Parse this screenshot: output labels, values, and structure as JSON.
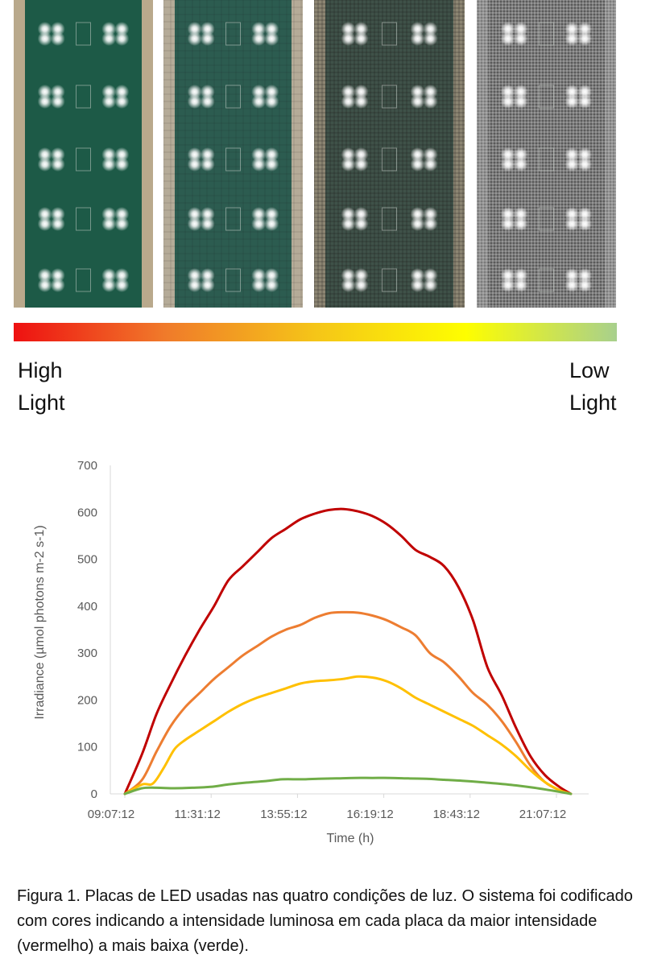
{
  "scale": {
    "gradient_colors": [
      "#ee1111",
      "#f07a2a",
      "#f5c518",
      "#fefe00",
      "#a8d08d"
    ],
    "high_label": "High\nLight",
    "low_label": "Low\nLight"
  },
  "panels": [
    {
      "name": "high-light-panel",
      "shade_level": 0
    },
    {
      "name": "medium-high-light-panel",
      "shade_level": 1
    },
    {
      "name": "medium-low-light-panel",
      "shade_level": 2
    },
    {
      "name": "low-light-panel",
      "shade_level": 3
    }
  ],
  "chart_data": {
    "type": "line",
    "title": "",
    "xlabel": "Time (h)",
    "ylabel": "Irradiance  (µmol photons m-2 s-1)",
    "ylim": [
      0,
      700
    ],
    "yticks": [
      0,
      100,
      200,
      300,
      400,
      500,
      600,
      700
    ],
    "xlim": [
      9.119,
      21.519
    ],
    "xticks": [
      "09:07:12",
      "11:31:12",
      "13:55:12",
      "16:19:12",
      "18:43:12",
      "21:07:12"
    ],
    "xtick_hours": [
      9.12,
      11.52,
      13.92,
      16.32,
      18.72,
      21.12
    ],
    "grid": false,
    "legend": "none",
    "series": [
      {
        "color": "#c00000",
        "x": [
          9.12,
          9.6,
          10.0,
          10.4,
          10.8,
          11.2,
          11.6,
          12.0,
          12.4,
          12.8,
          13.2,
          13.6,
          14.0,
          14.4,
          14.8,
          15.2,
          15.6,
          16.0,
          16.4,
          16.8,
          17.2,
          17.6,
          18.0,
          18.4,
          18.8,
          19.2,
          19.6,
          20.0,
          20.4,
          20.8,
          21.2,
          21.52
        ],
        "y": [
          0,
          85,
          170,
          235,
          295,
          350,
          400,
          455,
          485,
          515,
          545,
          565,
          585,
          597,
          605,
          607,
          602,
          592,
          575,
          550,
          520,
          505,
          485,
          440,
          370,
          270,
          210,
          140,
          80,
          40,
          15,
          0
        ]
      },
      {
        "color": "#ed7d31",
        "x": [
          9.12,
          9.6,
          10.0,
          10.4,
          10.8,
          11.2,
          11.6,
          12.0,
          12.4,
          12.8,
          13.2,
          13.6,
          14.0,
          14.4,
          14.8,
          15.2,
          15.6,
          16.0,
          16.4,
          16.8,
          17.2,
          17.6,
          18.0,
          18.4,
          18.8,
          19.2,
          19.6,
          20.0,
          20.4,
          20.8,
          21.2,
          21.52
        ],
        "y": [
          0,
          30,
          90,
          145,
          185,
          215,
          245,
          270,
          295,
          315,
          335,
          350,
          360,
          375,
          385,
          387,
          386,
          380,
          370,
          355,
          338,
          300,
          280,
          250,
          215,
          190,
          155,
          110,
          60,
          25,
          8,
          0
        ]
      },
      {
        "color": "#ffc000",
        "x": [
          9.12,
          9.6,
          9.9,
          10.2,
          10.5,
          10.8,
          11.2,
          11.6,
          12.0,
          12.4,
          12.8,
          13.2,
          13.6,
          14.0,
          14.4,
          14.8,
          15.2,
          15.6,
          16.0,
          16.4,
          16.8,
          17.2,
          17.6,
          18.0,
          18.4,
          18.8,
          19.2,
          19.6,
          20.0,
          20.4,
          20.8,
          21.2,
          21.52
        ],
        "y": [
          0,
          20,
          22,
          55,
          95,
          115,
          135,
          155,
          175,
          192,
          205,
          215,
          225,
          235,
          240,
          242,
          245,
          250,
          248,
          240,
          225,
          205,
          190,
          175,
          160,
          145,
          125,
          105,
          80,
          50,
          25,
          8,
          0
        ]
      },
      {
        "color": "#70ad47",
        "x": [
          9.12,
          9.6,
          10.0,
          10.5,
          11.0,
          11.5,
          12.0,
          12.5,
          13.0,
          13.5,
          14.0,
          14.5,
          15.0,
          15.5,
          16.0,
          16.5,
          17.0,
          17.5,
          18.0,
          18.5,
          19.0,
          19.5,
          20.0,
          20.5,
          21.0,
          21.52
        ],
        "y": [
          0,
          12,
          13,
          12,
          13,
          15,
          20,
          24,
          27,
          31,
          31,
          32,
          33,
          34,
          34,
          34,
          33,
          32,
          30,
          28,
          25,
          22,
          18,
          13,
          7,
          0
        ]
      }
    ]
  },
  "caption": "Figura 1. Placas de LED usadas nas quatro condições de luz. O sistema foi codificado com cores indicando a intensidade luminosa em cada placa da maior intensidade (vermelho) a mais baixa (verde)."
}
